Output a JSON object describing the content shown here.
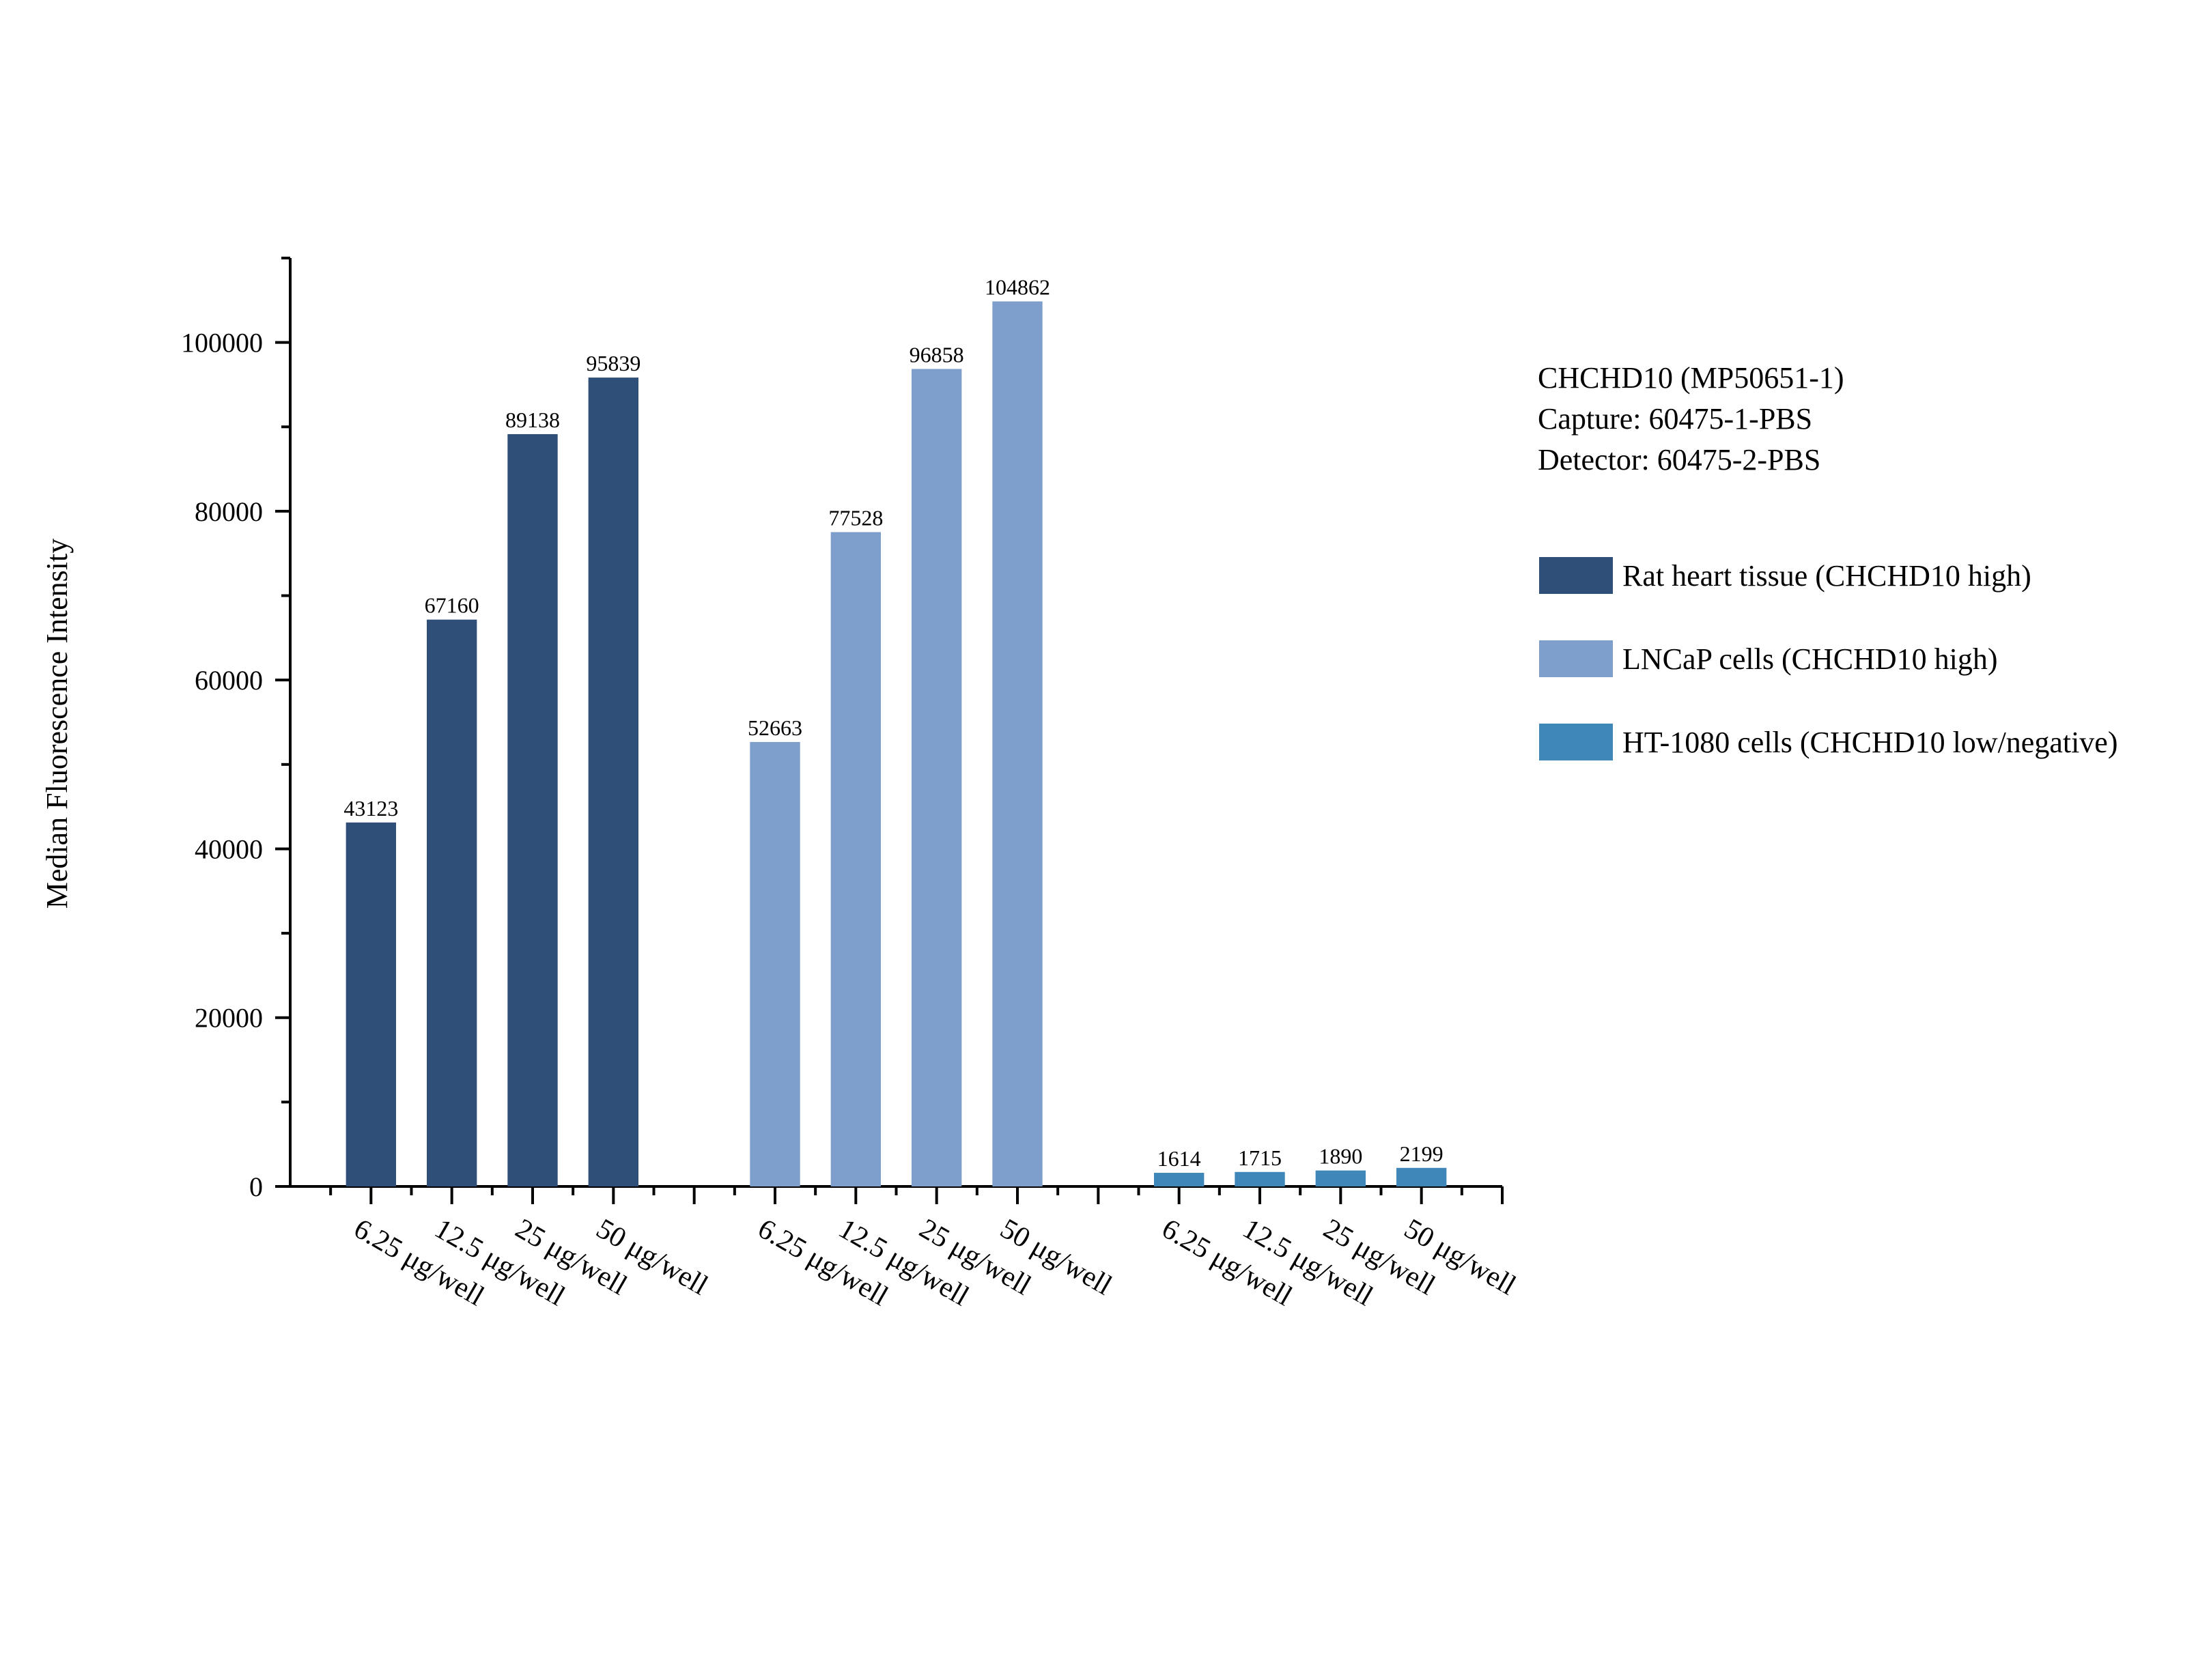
{
  "chart_data": {
    "type": "bar",
    "title": "",
    "xlabel": "",
    "ylabel": "Median Fluorescence Intensity",
    "ylim": [
      0,
      110000
    ],
    "yticks": [
      0,
      20000,
      40000,
      60000,
      80000,
      100000
    ],
    "grid": false,
    "info_lines": [
      "CHCHD10 (MP50651-1)",
      "Capture: 60475-1-PBS",
      "Detector: 60475-2-PBS"
    ],
    "legend_position": "right",
    "categories": [
      "6.25 μg/well",
      "12.5 μg/well",
      "25 μg/well",
      "50 μg/well"
    ],
    "series": [
      {
        "name": "Rat heart tissue (CHCHD10 high)",
        "color": "#2f4e78",
        "values": [
          43123,
          67160,
          89138,
          95839
        ]
      },
      {
        "name": "LNCaP cells (CHCHD10 high)",
        "color": "#7e9fcb",
        "values": [
          52663,
          77528,
          96858,
          104862
        ]
      },
      {
        "name": "HT-1080 cells (CHCHD10 low/negative)",
        "color": "#3e87b8",
        "values": [
          1614,
          1715,
          1890,
          2199
        ]
      }
    ]
  }
}
